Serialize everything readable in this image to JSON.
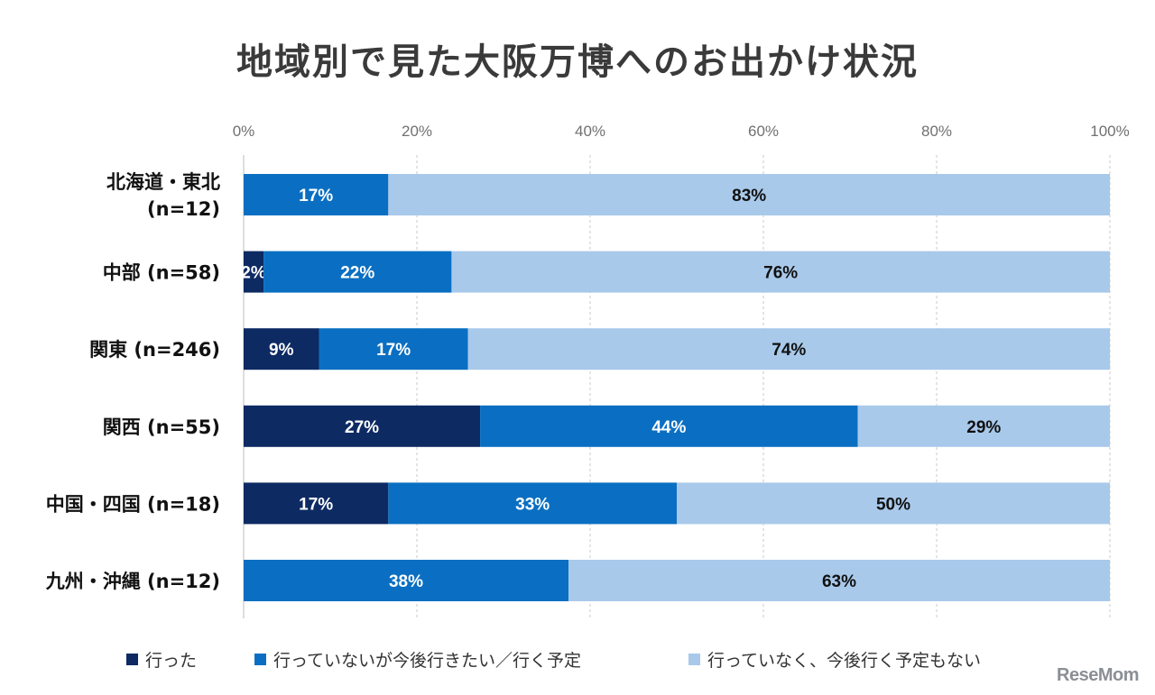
{
  "title": "地域別で見た大阪万博へのお出かけ状況",
  "watermark": "ReseMom",
  "chart_data": {
    "type": "bar",
    "orientation": "horizontal",
    "stacked": true,
    "title": "地域別で見た大阪万博へのお出かけ状況",
    "xlim": [
      0,
      100
    ],
    "xticks": [
      "0%",
      "20%",
      "40%",
      "60%",
      "80%",
      "100%"
    ],
    "tick_values": [
      0,
      20,
      40,
      60,
      80,
      100
    ],
    "grid": true,
    "legend_position": "bottom",
    "categories": [
      [
        "北海道・東北",
        "(n=12)"
      ],
      [
        "中部 (n=58)"
      ],
      [
        "関東 (n=246)"
      ],
      [
        "関西 (n=55)"
      ],
      [
        "中国・四国 (n=18)"
      ],
      [
        "九州・沖縄 (n=12)"
      ]
    ],
    "series": [
      {
        "name": "行った",
        "color": "#0d2a63",
        "label_color": "#ffffff",
        "values": [
          0,
          2.3,
          8.7,
          27.3,
          16.7,
          0
        ],
        "labels": [
          "",
          "2%",
          "9%",
          "27%",
          "17%",
          ""
        ]
      },
      {
        "name": "行っていないが今後行きたい／行く予定",
        "color": "#0a6fc2",
        "label_color": "#ffffff",
        "values": [
          16.7,
          21.7,
          17.2,
          43.6,
          33.3,
          37.5
        ],
        "labels": [
          "17%",
          "22%",
          "17%",
          "44%",
          "33%",
          "38%"
        ]
      },
      {
        "name": "行っていなく、今後行く予定もない",
        "color": "#a8c9ea",
        "label_color": "#111111",
        "values": [
          83.3,
          76.0,
          74.1,
          29.1,
          50.0,
          62.5
        ],
        "labels": [
          "83%",
          "76%",
          "74%",
          "29%",
          "50%",
          "63%"
        ]
      }
    ]
  }
}
